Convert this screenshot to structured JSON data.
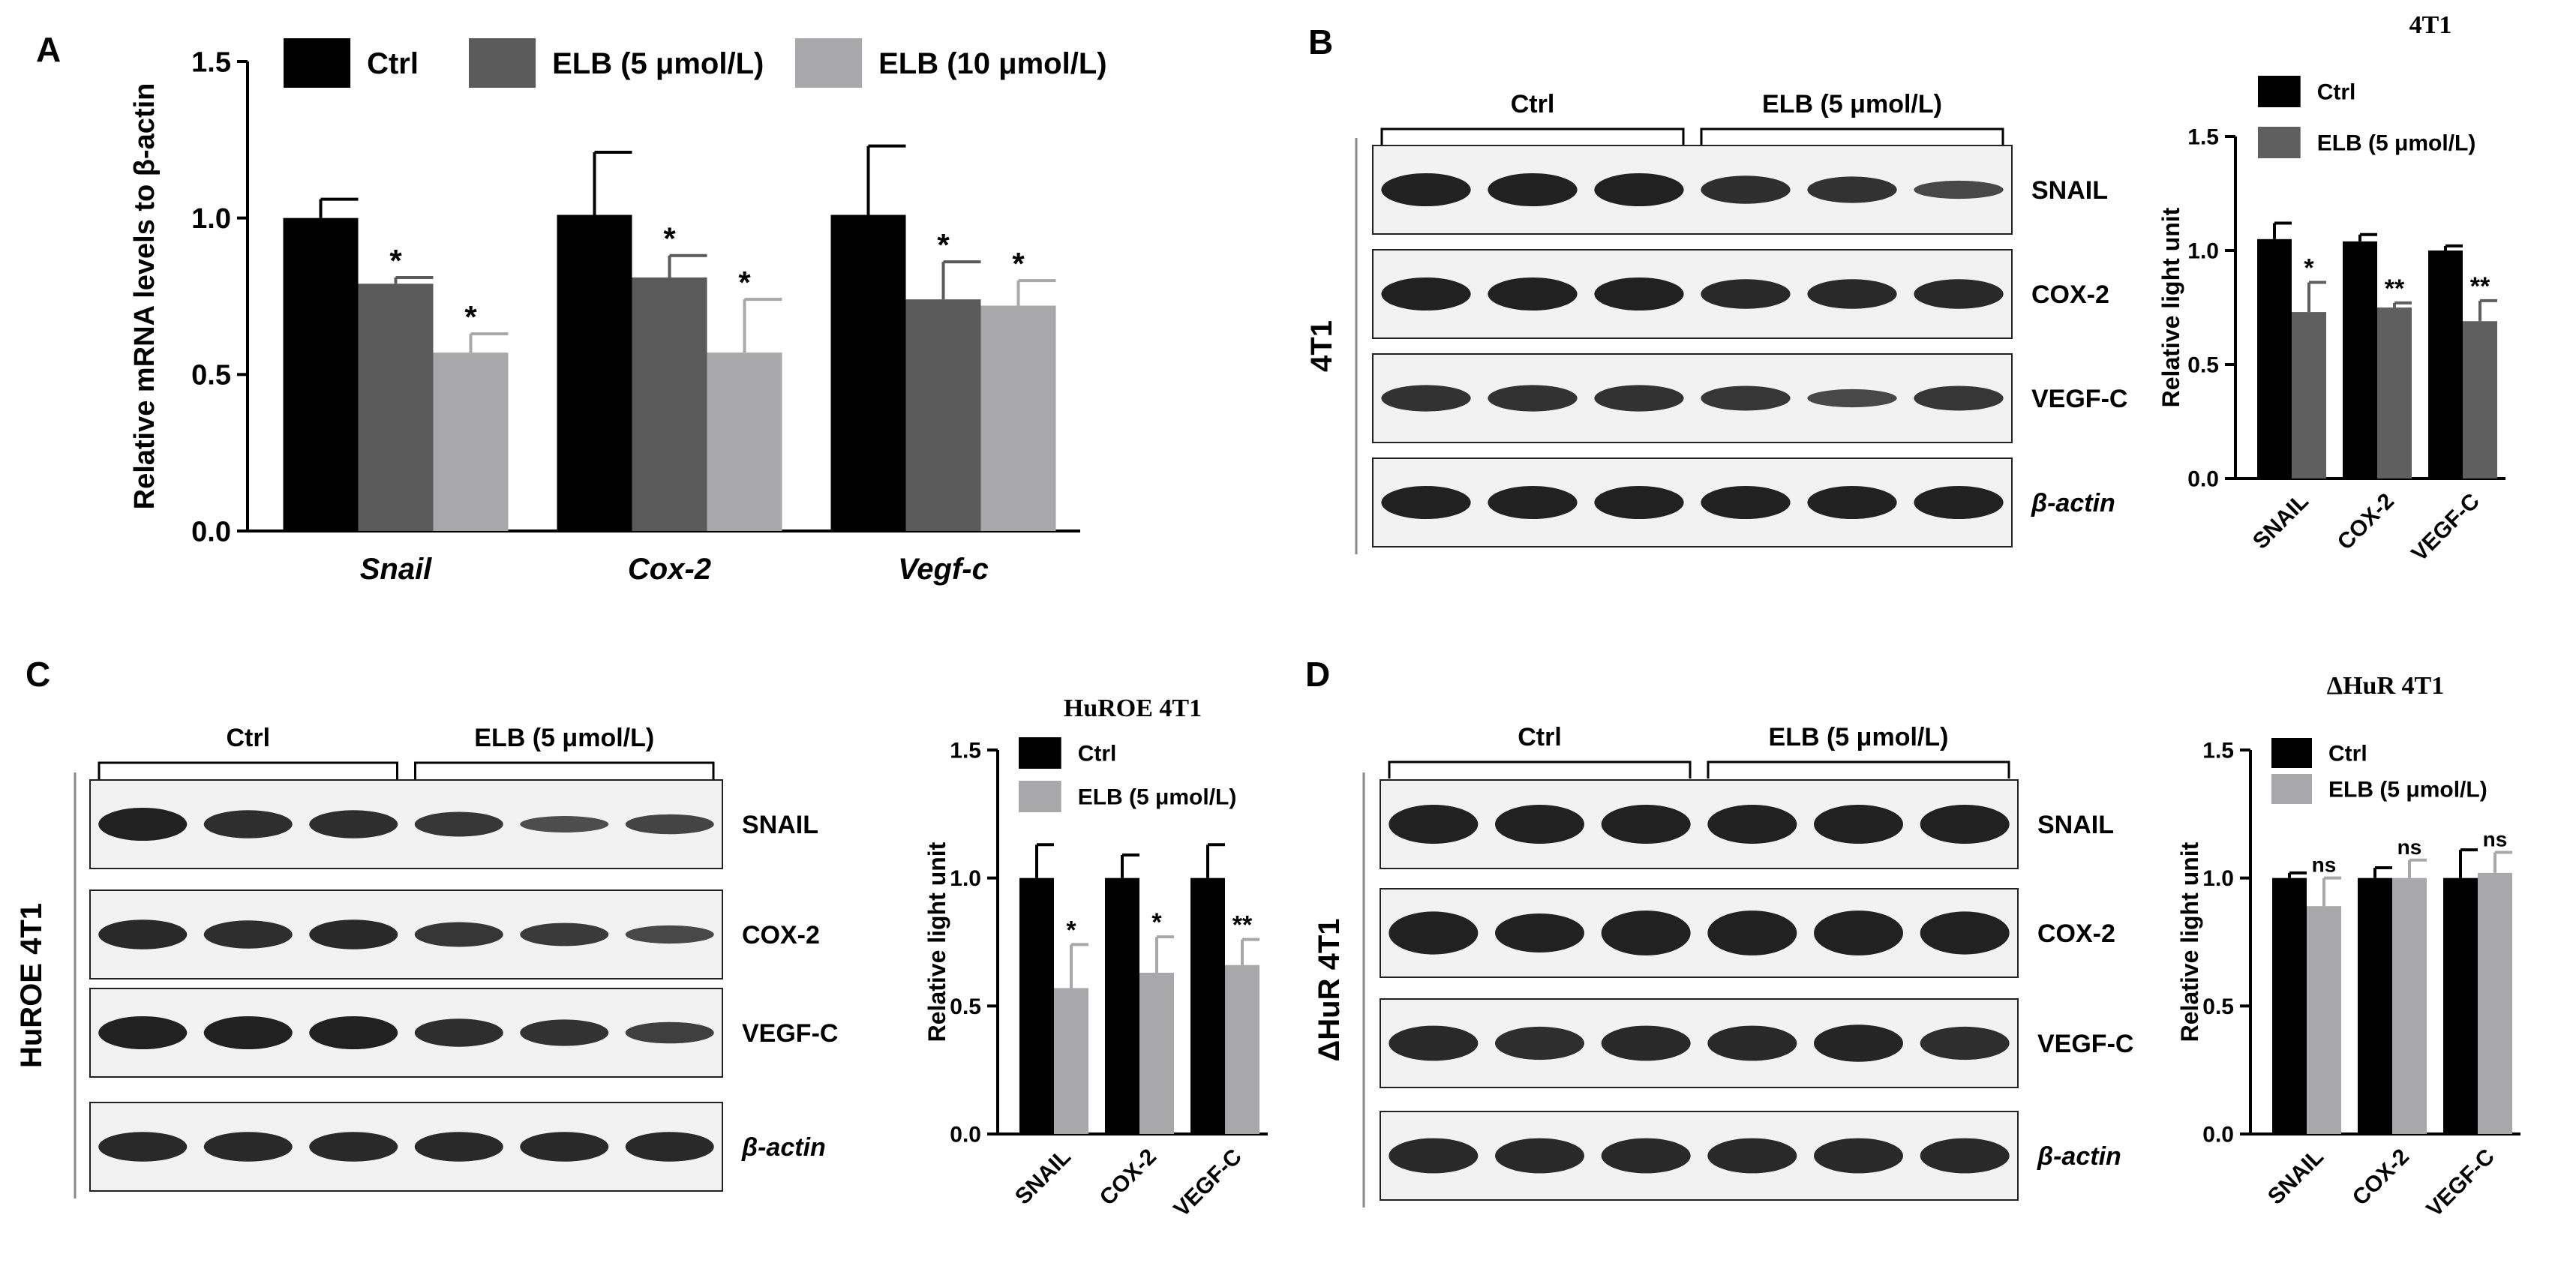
{
  "panels": {
    "A": {
      "letter": "A",
      "chart_data": {
        "type": "bar",
        "title": "",
        "ylabel": "Relative mRNA levels to β-actin",
        "xlabel": "",
        "categories": [
          "Snail",
          "Cox-2",
          "Vegf-c"
        ],
        "ylim": [
          0,
          1.5
        ],
        "yticks": [
          "0.0",
          "0.5",
          "1.0",
          "1.5"
        ],
        "legend_position": "top",
        "series": [
          {
            "name": "Ctrl",
            "color": "#000000",
            "values": [
              1.0,
              1.01,
              1.01
            ],
            "errors": [
              0.06,
              0.2,
              0.22
            ],
            "marks": [
              "",
              "",
              ""
            ]
          },
          {
            "name": "ELB (5 μmol/L)",
            "color": "#5a5a5a",
            "values": [
              0.79,
              0.81,
              0.74
            ],
            "errors": [
              0.02,
              0.07,
              0.12
            ],
            "marks": [
              "*",
              "*",
              "*"
            ]
          },
          {
            "name": "ELB (10 μmol/L)",
            "color": "#a8a8aa",
            "values": [
              0.57,
              0.57,
              0.72
            ],
            "errors": [
              0.06,
              0.17,
              0.08
            ],
            "marks": [
              "*",
              "*",
              "*"
            ]
          }
        ]
      }
    },
    "B": {
      "letter": "B",
      "blot": {
        "groups": [
          "Ctrl",
          "ELB (5 μmol/L)"
        ],
        "side_label": "4T1",
        "rows": [
          "SNAIL",
          "COX-2",
          "VEGF-C",
          "β-actin"
        ]
      },
      "chart_data": {
        "type": "bar",
        "title": "4T1",
        "ylabel": "Relative light unit",
        "xlabel": "",
        "categories": [
          "SNAIL",
          "COX-2",
          "VEGF-C"
        ],
        "ylim": [
          0,
          1.5
        ],
        "yticks": [
          "0.0",
          "0.5",
          "1.0",
          "1.5"
        ],
        "legend_position": "top-right",
        "series": [
          {
            "name": "Ctrl",
            "color": "#000000",
            "values": [
              1.05,
              1.04,
              1.0
            ],
            "errors": [
              0.07,
              0.03,
              0.02
            ],
            "marks": [
              "",
              "",
              ""
            ]
          },
          {
            "name": "ELB (5 μmol/L)",
            "color": "#5f5f5f",
            "values": [
              0.73,
              0.75,
              0.69
            ],
            "errors": [
              0.13,
              0.02,
              0.09
            ],
            "marks": [
              "*",
              "**",
              "**"
            ]
          }
        ]
      }
    },
    "C": {
      "letter": "C",
      "blot": {
        "groups": [
          "Ctrl",
          "ELB (5 μmol/L)"
        ],
        "side_label": "HuROE 4T1",
        "rows": [
          "SNAIL",
          "COX-2",
          "VEGF-C",
          "β-actin"
        ]
      },
      "chart_data": {
        "type": "bar",
        "title": "HuROE 4T1",
        "ylabel": "Relative light unit",
        "xlabel": "",
        "categories": [
          "SNAIL",
          "COX-2",
          "VEGF-C"
        ],
        "ylim": [
          0,
          1.5
        ],
        "yticks": [
          "0.0",
          "0.5",
          "1.0",
          "1.5"
        ],
        "legend_position": "top-right",
        "series": [
          {
            "name": "Ctrl",
            "color": "#000000",
            "values": [
              1.0,
              1.0,
              1.0
            ],
            "errors": [
              0.13,
              0.09,
              0.13
            ],
            "marks": [
              "",
              "",
              ""
            ]
          },
          {
            "name": "ELB (5 μmol/L)",
            "color": "#a8a8aa",
            "values": [
              0.57,
              0.63,
              0.66
            ],
            "errors": [
              0.17,
              0.14,
              0.1
            ],
            "marks": [
              "*",
              "*",
              "**"
            ]
          }
        ]
      }
    },
    "D": {
      "letter": "D",
      "blot": {
        "groups": [
          "Ctrl",
          "ELB (5 μmol/L)"
        ],
        "side_label": "ΔHuR 4T1",
        "rows": [
          "SNAIL",
          "COX-2",
          "VEGF-C",
          "β-actin"
        ]
      },
      "chart_data": {
        "type": "bar",
        "title": "ΔHuR 4T1",
        "ylabel": "Relative light unit",
        "xlabel": "",
        "categories": [
          "SNAIL",
          "COX-2",
          "VEGF-C"
        ],
        "ylim": [
          0,
          1.5
        ],
        "yticks": [
          "0.0",
          "0.5",
          "1.0",
          "1.5"
        ],
        "legend_position": "top-right",
        "series": [
          {
            "name": "Ctrl",
            "color": "#000000",
            "values": [
              1.0,
              1.0,
              1.0
            ],
            "errors": [
              0.02,
              0.04,
              0.11
            ],
            "marks": [
              "",
              "",
              ""
            ]
          },
          {
            "name": "ELB (5 μmol/L)",
            "color": "#a8a8aa",
            "values": [
              0.89,
              1.0,
              1.02
            ],
            "errors": [
              0.11,
              0.07,
              0.08
            ],
            "marks": [
              "ns",
              "ns",
              "ns"
            ]
          }
        ]
      }
    }
  }
}
